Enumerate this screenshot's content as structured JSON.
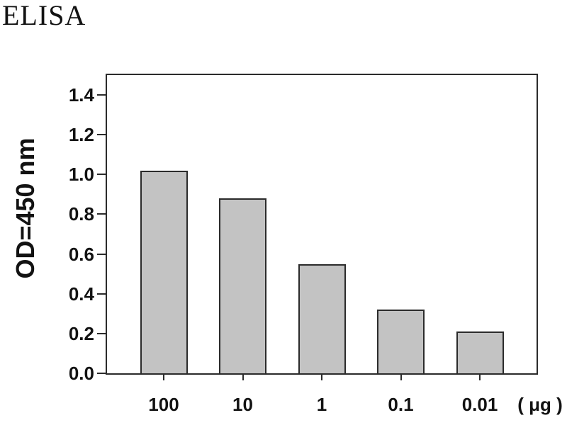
{
  "chart_data": {
    "type": "bar",
    "title": "ELISA",
    "categories": [
      "100",
      "10",
      "1",
      "0.1",
      "0.01"
    ],
    "values": [
      1.02,
      0.88,
      0.55,
      0.32,
      0.21
    ],
    "xlabel": "( μg )",
    "ylabel": "OD=450 nm",
    "ylim": [
      0,
      1.5
    ],
    "yticks": [
      0.0,
      0.2,
      0.4,
      0.6,
      0.8,
      1.0,
      1.2,
      1.4
    ],
    "ytick_decimals": 1,
    "grid": false,
    "legend": false,
    "colors": {
      "bar_fill": "#c3c3c3",
      "bar_border": "#2b2b2b",
      "axis": "#2b2b2b",
      "text": "#121212",
      "background": "#ffffff"
    }
  }
}
